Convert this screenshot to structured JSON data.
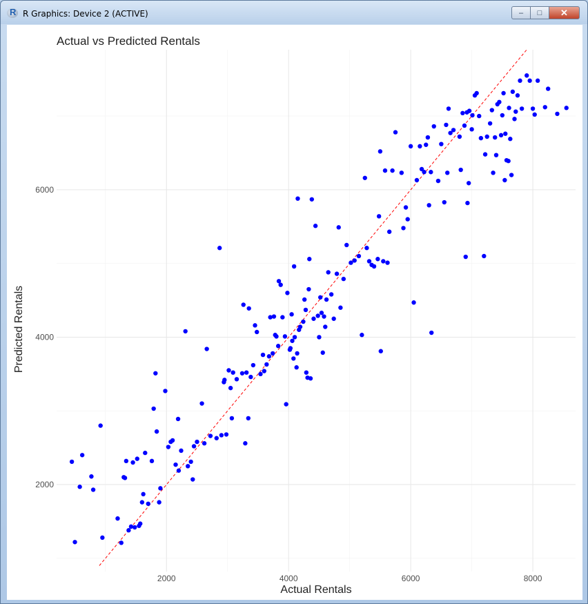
{
  "window": {
    "title": "R Graphics: Device 2 (ACTIVE)",
    "app_icon_letter": "R",
    "icons": [
      "r-app-icon",
      "minimize-icon",
      "maximize-icon",
      "close-icon"
    ],
    "minimize_label": "–",
    "maximize_label": "□",
    "close_label": "✕"
  },
  "chart_data": {
    "type": "scatter",
    "title": "Actual vs Predicted Rentals",
    "xlabel": "Actual Rentals",
    "ylabel": "Predicted Rentals",
    "xlim": [
      200,
      8700
    ],
    "ylim": [
      820,
      7900
    ],
    "x_ticks": [
      2000,
      4000,
      6000,
      8000
    ],
    "y_ticks": [
      2000,
      4000,
      6000
    ],
    "grid": true,
    "point_color": "#0000ff",
    "reference_line": {
      "type": "y=x",
      "style": "dashed",
      "color": "#ff0000",
      "from": 900,
      "to": 7900
    },
    "points": [
      [
        450,
        2310
      ],
      [
        500,
        1220
      ],
      [
        580,
        1970
      ],
      [
        620,
        2400
      ],
      [
        770,
        2110
      ],
      [
        800,
        1930
      ],
      [
        920,
        2800
      ],
      [
        950,
        1280
      ],
      [
        1200,
        1540
      ],
      [
        1260,
        1210
      ],
      [
        1300,
        2100
      ],
      [
        1320,
        2090
      ],
      [
        1340,
        2320
      ],
      [
        1380,
        1380
      ],
      [
        1420,
        1430
      ],
      [
        1450,
        2300
      ],
      [
        1480,
        1420
      ],
      [
        1520,
        2350
      ],
      [
        1550,
        1440
      ],
      [
        1570,
        1470
      ],
      [
        1600,
        1760
      ],
      [
        1620,
        1870
      ],
      [
        1650,
        2430
      ],
      [
        1700,
        1740
      ],
      [
        1760,
        2320
      ],
      [
        1790,
        3030
      ],
      [
        1820,
        3510
      ],
      [
        1840,
        2720
      ],
      [
        1880,
        1760
      ],
      [
        1900,
        1950
      ],
      [
        1980,
        3270
      ],
      [
        2030,
        2510
      ],
      [
        2070,
        2580
      ],
      [
        2100,
        2600
      ],
      [
        2150,
        2270
      ],
      [
        2190,
        2890
      ],
      [
        2200,
        2190
      ],
      [
        2240,
        2460
      ],
      [
        2310,
        4080
      ],
      [
        2350,
        2250
      ],
      [
        2400,
        2310
      ],
      [
        2430,
        2070
      ],
      [
        2450,
        2520
      ],
      [
        2500,
        2580
      ],
      [
        2580,
        3100
      ],
      [
        2620,
        2560
      ],
      [
        2660,
        3840
      ],
      [
        2720,
        2660
      ],
      [
        2820,
        2630
      ],
      [
        2870,
        5210
      ],
      [
        2900,
        2670
      ],
      [
        2940,
        3390
      ],
      [
        2950,
        3420
      ],
      [
        2980,
        2680
      ],
      [
        3020,
        3550
      ],
      [
        3050,
        3310
      ],
      [
        3070,
        2900
      ],
      [
        3090,
        3520
      ],
      [
        3150,
        3430
      ],
      [
        3240,
        3510
      ],
      [
        3260,
        4440
      ],
      [
        3290,
        2560
      ],
      [
        3310,
        3520
      ],
      [
        3340,
        2900
      ],
      [
        3350,
        4390
      ],
      [
        3380,
        3460
      ],
      [
        3420,
        3620
      ],
      [
        3450,
        4160
      ],
      [
        3480,
        4070
      ],
      [
        3540,
        3500
      ],
      [
        3580,
        3760
      ],
      [
        3600,
        3540
      ],
      [
        3640,
        3630
      ],
      [
        3680,
        3740
      ],
      [
        3700,
        4270
      ],
      [
        3740,
        3780
      ],
      [
        3760,
        4280
      ],
      [
        3780,
        4030
      ],
      [
        3800,
        4010
      ],
      [
        3830,
        3880
      ],
      [
        3840,
        4760
      ],
      [
        3870,
        4710
      ],
      [
        3900,
        4270
      ],
      [
        3940,
        4010
      ],
      [
        3960,
        3090
      ],
      [
        3980,
        4600
      ],
      [
        4020,
        3830
      ],
      [
        4030,
        3850
      ],
      [
        4050,
        4310
      ],
      [
        4060,
        3950
      ],
      [
        4080,
        3710
      ],
      [
        4090,
        4960
      ],
      [
        4100,
        4000
      ],
      [
        4130,
        3590
      ],
      [
        4140,
        3780
      ],
      [
        4150,
        5880
      ],
      [
        4170,
        4100
      ],
      [
        4190,
        4140
      ],
      [
        4240,
        4210
      ],
      [
        4260,
        4510
      ],
      [
        4280,
        4370
      ],
      [
        4290,
        3520
      ],
      [
        4310,
        3450
      ],
      [
        4330,
        4650
      ],
      [
        4340,
        5060
      ],
      [
        4360,
        3440
      ],
      [
        4380,
        5870
      ],
      [
        4410,
        4250
      ],
      [
        4440,
        5510
      ],
      [
        4480,
        4290
      ],
      [
        4500,
        4000
      ],
      [
        4520,
        4540
      ],
      [
        4540,
        4330
      ],
      [
        4560,
        3790
      ],
      [
        4580,
        4280
      ],
      [
        4600,
        4140
      ],
      [
        4620,
        4510
      ],
      [
        4650,
        4880
      ],
      [
        4700,
        4580
      ],
      [
        4740,
        4250
      ],
      [
        4790,
        4860
      ],
      [
        4820,
        5490
      ],
      [
        4850,
        4400
      ],
      [
        4900,
        4790
      ],
      [
        4950,
        5250
      ],
      [
        5020,
        5010
      ],
      [
        5080,
        5040
      ],
      [
        5150,
        5100
      ],
      [
        5200,
        4030
      ],
      [
        5250,
        6160
      ],
      [
        5280,
        5210
      ],
      [
        5320,
        5030
      ],
      [
        5360,
        4980
      ],
      [
        5400,
        4960
      ],
      [
        5460,
        5060
      ],
      [
        5480,
        5640
      ],
      [
        5500,
        6520
      ],
      [
        5510,
        3810
      ],
      [
        5550,
        5030
      ],
      [
        5580,
        6260
      ],
      [
        5620,
        5010
      ],
      [
        5650,
        5430
      ],
      [
        5700,
        6260
      ],
      [
        5750,
        6780
      ],
      [
        5850,
        6230
      ],
      [
        5880,
        5480
      ],
      [
        5920,
        5760
      ],
      [
        5950,
        5600
      ],
      [
        6000,
        6590
      ],
      [
        6050,
        4470
      ],
      [
        6100,
        6130
      ],
      [
        6150,
        6590
      ],
      [
        6180,
        6280
      ],
      [
        6220,
        6240
      ],
      [
        6250,
        6610
      ],
      [
        6280,
        6710
      ],
      [
        6300,
        5790
      ],
      [
        6330,
        6240
      ],
      [
        6340,
        4060
      ],
      [
        6380,
        6860
      ],
      [
        6450,
        6120
      ],
      [
        6500,
        6620
      ],
      [
        6550,
        5830
      ],
      [
        6580,
        6880
      ],
      [
        6600,
        6230
      ],
      [
        6620,
        7100
      ],
      [
        6650,
        6770
      ],
      [
        6700,
        6810
      ],
      [
        6800,
        6720
      ],
      [
        6820,
        6270
      ],
      [
        6850,
        7040
      ],
      [
        6880,
        6870
      ],
      [
        6900,
        5090
      ],
      [
        6920,
        7050
      ],
      [
        6930,
        5820
      ],
      [
        6950,
        6090
      ],
      [
        6960,
        7070
      ],
      [
        7000,
        6820
      ],
      [
        7010,
        7010
      ],
      [
        7050,
        7280
      ],
      [
        7080,
        7310
      ],
      [
        7120,
        7000
      ],
      [
        7150,
        6700
      ],
      [
        7200,
        5100
      ],
      [
        7220,
        6480
      ],
      [
        7250,
        6720
      ],
      [
        7300,
        6900
      ],
      [
        7330,
        7080
      ],
      [
        7350,
        6230
      ],
      [
        7380,
        6710
      ],
      [
        7400,
        6470
      ],
      [
        7420,
        7160
      ],
      [
        7450,
        7190
      ],
      [
        7480,
        6740
      ],
      [
        7500,
        7010
      ],
      [
        7520,
        7310
      ],
      [
        7540,
        6130
      ],
      [
        7550,
        6760
      ],
      [
        7570,
        6400
      ],
      [
        7600,
        6390
      ],
      [
        7610,
        7110
      ],
      [
        7630,
        6690
      ],
      [
        7650,
        6200
      ],
      [
        7670,
        7330
      ],
      [
        7700,
        6960
      ],
      [
        7720,
        7060
      ],
      [
        7750,
        7280
      ],
      [
        7790,
        7480
      ],
      [
        7820,
        7100
      ],
      [
        7900,
        7550
      ],
      [
        7950,
        7480
      ],
      [
        8000,
        7100
      ],
      [
        8030,
        7020
      ],
      [
        8080,
        7480
      ],
      [
        8200,
        7120
      ],
      [
        8250,
        7370
      ],
      [
        8400,
        7030
      ],
      [
        8550,
        7110
      ]
    ]
  }
}
